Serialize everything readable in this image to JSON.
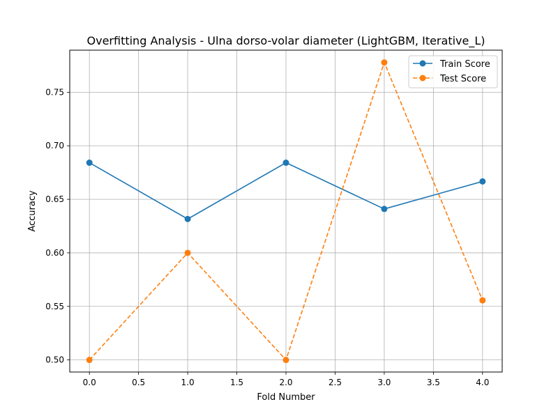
{
  "chart_data": {
    "type": "line",
    "title": "Overfitting Analysis - Ulna dorso-volar diameter (LightGBM, Iterative_L)",
    "xlabel": "Fold Number",
    "ylabel": "Accuracy",
    "x": [
      0,
      1,
      2,
      3,
      4
    ],
    "xlim": [
      -0.2,
      4.2
    ],
    "ylim": [
      0.4887,
      0.7893
    ],
    "xticks": [
      0.0,
      0.5,
      1.0,
      1.5,
      2.0,
      2.5,
      3.0,
      3.5,
      4.0
    ],
    "xtick_labels": [
      "0.0",
      "0.5",
      "1.0",
      "1.5",
      "2.0",
      "2.5",
      "3.0",
      "3.5",
      "4.0"
    ],
    "yticks": [
      0.5,
      0.55,
      0.6,
      0.65,
      0.7,
      0.75
    ],
    "ytick_labels": [
      "0.50",
      "0.55",
      "0.60",
      "0.65",
      "0.70",
      "0.75"
    ],
    "grid": true,
    "legend_position": "top-right",
    "series": [
      {
        "name": "Train Score",
        "values": [
          0.6842,
          0.6316,
          0.6842,
          0.641,
          0.6667
        ],
        "color": "#1f77b4",
        "line_style": "solid",
        "marker": "circle"
      },
      {
        "name": "Test Score",
        "values": [
          0.5,
          0.6,
          0.5,
          0.7778,
          0.5556
        ],
        "color": "#ff7f0e",
        "line_style": "dashed",
        "marker": "circle"
      }
    ]
  }
}
